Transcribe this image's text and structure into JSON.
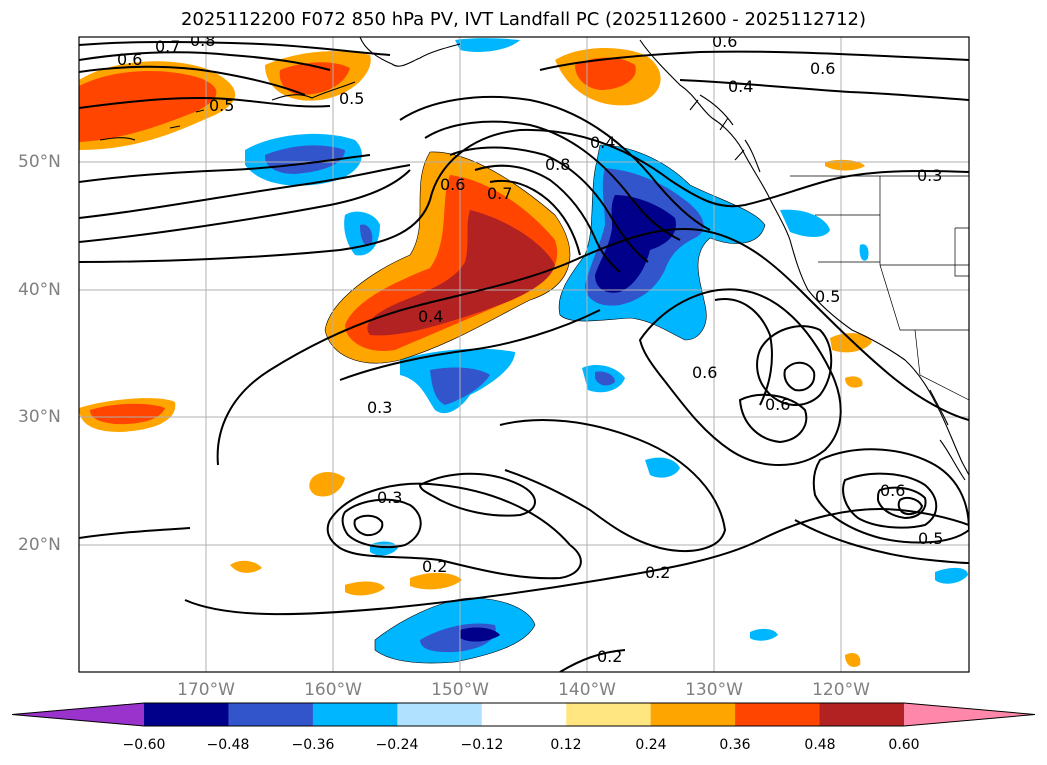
{
  "title": "2025112200 F072 850 hPa PV, IVT Landfall PC (2025112600 - 2025112712)",
  "y_ticks": [
    "50°N",
    "40°N",
    "30°N",
    "20°N"
  ],
  "x_ticks": [
    "170°W",
    "160°W",
    "150°W",
    "140°W",
    "130°W",
    "120°W"
  ],
  "colorbar": {
    "tick_labels": [
      "−0.60",
      "−0.48",
      "−0.36",
      "−0.24",
      "−0.12",
      "0.12",
      "0.24",
      "0.36",
      "0.48",
      "0.60"
    ],
    "colors": [
      "#9933cc",
      "#00008b",
      "#3355cc",
      "#00b7ff",
      "#b0e2ff",
      "#ffffff",
      "#ffe680",
      "#ffa500",
      "#ff4500",
      "#b22222",
      "#ff88aa"
    ]
  },
  "contour_labels": {
    "c1": "0.7",
    "c2": "0.8",
    "c3": "0.6",
    "c4": "0.5",
    "c5": "0.5",
    "c6": "0.6",
    "c7": "0.4",
    "c8": "0.6",
    "c9": "0.4",
    "c10": "0.8",
    "c11": "0.6",
    "c12": "0.7",
    "c13": "0.3",
    "c14": "0.4",
    "c15": "0.5",
    "c16": "0.6",
    "c17": "0.6",
    "c18": "0.3",
    "c19": "0.3",
    "c20": "0.2",
    "c21": "0.6",
    "c22": "0.5",
    "c23": "0.2",
    "c24": "0.2"
  }
}
